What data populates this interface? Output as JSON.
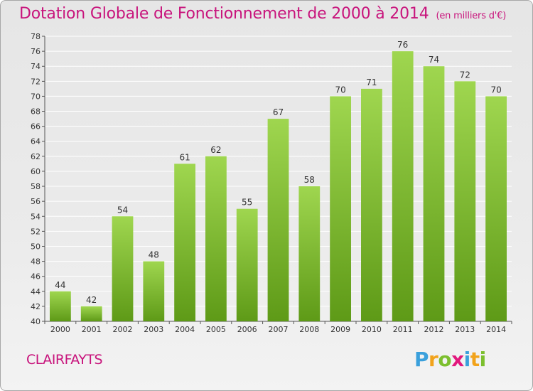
{
  "title": "Dotation Globale de Fonctionnement de 2000 à 2014",
  "subtitle": "(en milliers d'€)",
  "commune": "CLAIRFAYTS",
  "logo": {
    "text": "Proxiti",
    "letters": [
      {
        "char": "P",
        "color": "#3aa0dc"
      },
      {
        "char": "r",
        "color": "#f2a31b"
      },
      {
        "char": "o",
        "color": "#7cbf2e"
      },
      {
        "char": "x",
        "color": "#e2187d"
      },
      {
        "char": "i",
        "color": "#3aa0dc"
      },
      {
        "char": "t",
        "color": "#f2a31b"
      },
      {
        "char": "i",
        "color": "#7cbf2e"
      }
    ]
  },
  "colors": {
    "title": "#c8147c",
    "bar_top": "#9fd64f",
    "bar_bottom": "#5e9a17",
    "grid": "#ffffff",
    "axis_text": "#333333"
  },
  "chart_data": {
    "type": "bar",
    "title": "Dotation Globale de Fonctionnement de 2000 à 2014",
    "subtitle": "(en milliers d'€)",
    "xlabel": "",
    "ylabel": "",
    "categories": [
      "2000",
      "2001",
      "2002",
      "2003",
      "2004",
      "2005",
      "2006",
      "2007",
      "2008",
      "2009",
      "2010",
      "2011",
      "2012",
      "2013",
      "2014"
    ],
    "values": [
      44,
      42,
      54,
      48,
      61,
      62,
      55,
      67,
      58,
      70,
      71,
      76,
      74,
      72,
      70
    ],
    "ylim": [
      40,
      78
    ],
    "yticks": [
      40,
      42,
      44,
      46,
      48,
      50,
      52,
      54,
      56,
      58,
      60,
      62,
      64,
      66,
      68,
      70,
      72,
      74,
      76,
      78
    ],
    "grid": true,
    "data_labels": true,
    "legend": "none"
  }
}
